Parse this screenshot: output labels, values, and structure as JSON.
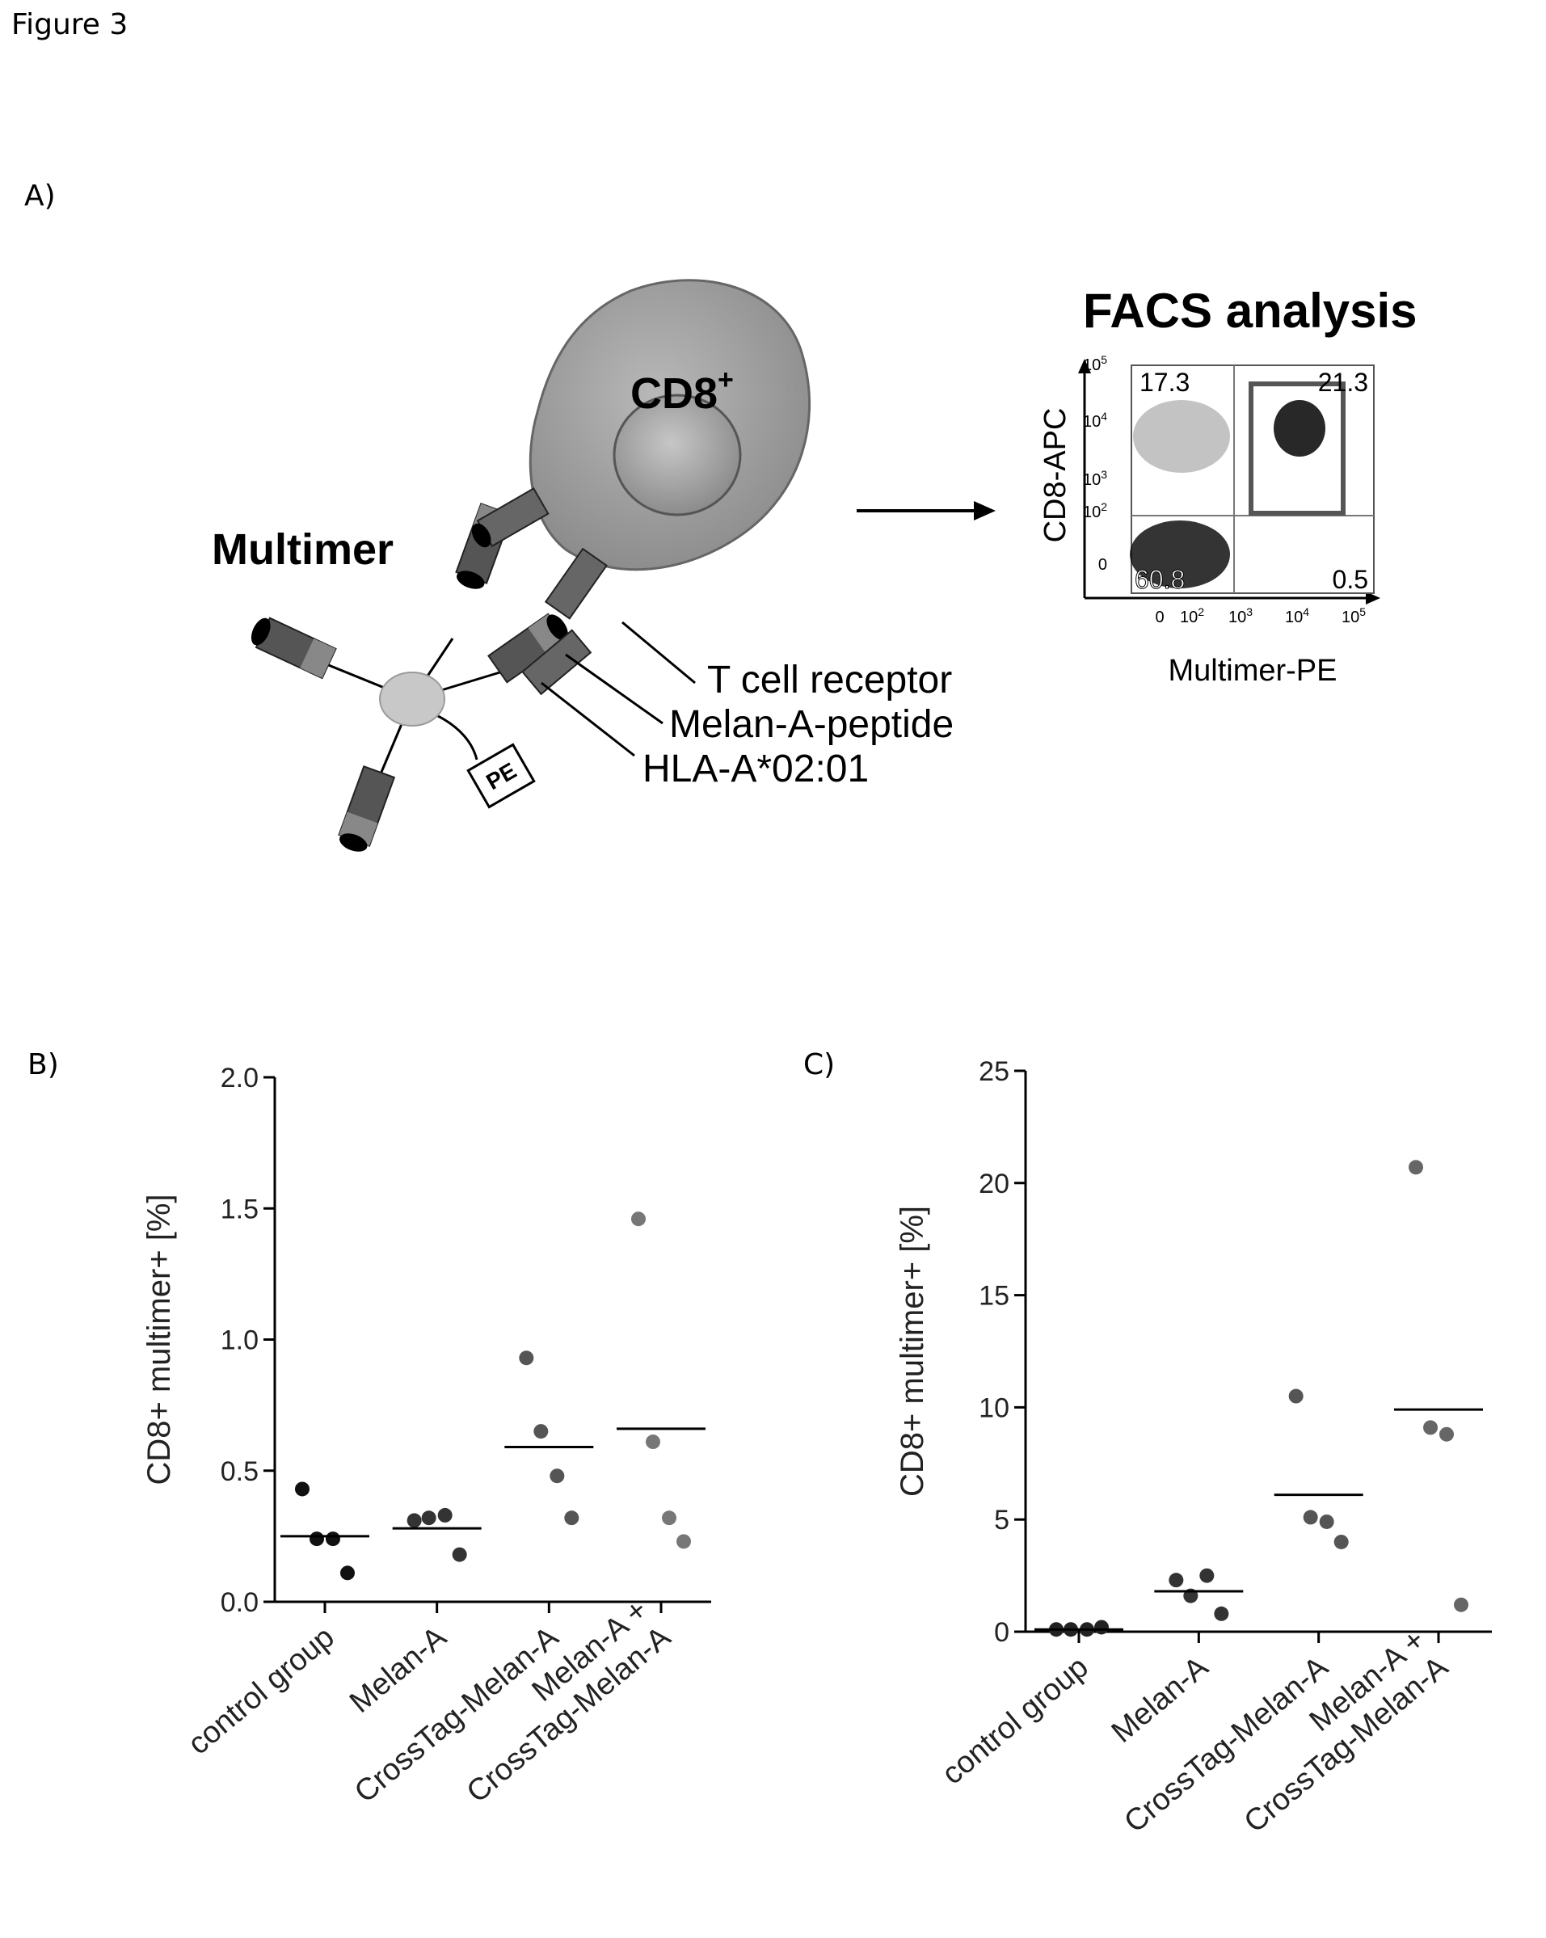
{
  "figure": {
    "label": "Figure 3"
  },
  "panels": {
    "a": {
      "letter": "A)"
    },
    "b": {
      "letter": "B)"
    },
    "c": {
      "letter": "C)"
    }
  },
  "diagram": {
    "cell_label": "CD8",
    "cell_label_sup": "+",
    "multimer_label": "Multimer",
    "pe_label": "PE",
    "callouts": [
      "T cell receptor",
      "Melan-A-peptide",
      "HLA-A*02:01"
    ]
  },
  "facs": {
    "title": "FACS analysis",
    "xlabel": "Multimer-PE",
    "ylabel": "CD8-APC",
    "quadrants": {
      "upper_left": "17.3",
      "upper_right": "21.3",
      "lower_left": "60.8",
      "lower_right": "0.5"
    },
    "ticks": [
      {
        "base": "0",
        "exp": ""
      },
      {
        "base": "10",
        "exp": "2"
      },
      {
        "base": "10",
        "exp": "3"
      },
      {
        "base": "10",
        "exp": "4"
      },
      {
        "base": "10",
        "exp": "5"
      }
    ]
  },
  "chart_data": [
    {
      "panel": "B)",
      "type": "scatter",
      "categories": [
        "control group",
        "Melan-A",
        "CrossTag-Melan-A",
        "Melan-A +\nCrossTag-Melan-A"
      ],
      "ylabel": "CD8+ multimer+ [%]",
      "ylim": [
        0,
        2.0
      ],
      "yticks": [
        "0.0",
        "0.5",
        "1.0",
        "1.5",
        "2.0"
      ],
      "ytick_values": [
        0,
        0.5,
        1.0,
        1.5,
        2.0
      ],
      "points": [
        [
          0.43,
          0.24,
          0.24,
          0.11
        ],
        [
          0.31,
          0.32,
          0.33,
          0.18
        ],
        [
          0.93,
          0.65,
          0.48,
          0.32
        ],
        [
          1.46,
          0.61,
          0.32,
          0.23
        ]
      ],
      "means": [
        0.25,
        0.28,
        0.59,
        0.66
      ],
      "colors": [
        "#111111",
        "#333333",
        "#555555",
        "#777777"
      ],
      "grid": false
    },
    {
      "panel": "C)",
      "type": "scatter",
      "categories": [
        "control group",
        "Melan-A",
        "CrossTag-Melan-A",
        "Melan-A +\nCrossTag-Melan-A"
      ],
      "ylabel": "CD8+ multimer+ [%]",
      "ylim": [
        0,
        25
      ],
      "yticks": [
        "0",
        "5",
        "10",
        "15",
        "20",
        "25"
      ],
      "ytick_values": [
        0,
        5,
        10,
        15,
        20,
        25
      ],
      "points": [
        [
          0.1,
          0.1,
          0.1,
          0.2
        ],
        [
          2.3,
          1.6,
          2.5,
          0.8
        ],
        [
          10.5,
          5.1,
          4.9,
          4.0
        ],
        [
          20.7,
          9.1,
          8.8,
          1.2
        ]
      ],
      "means": [
        0.1,
        1.8,
        6.1,
        9.9
      ],
      "colors": [
        "#222222",
        "#333333",
        "#555555",
        "#666666"
      ],
      "grid": false
    }
  ]
}
